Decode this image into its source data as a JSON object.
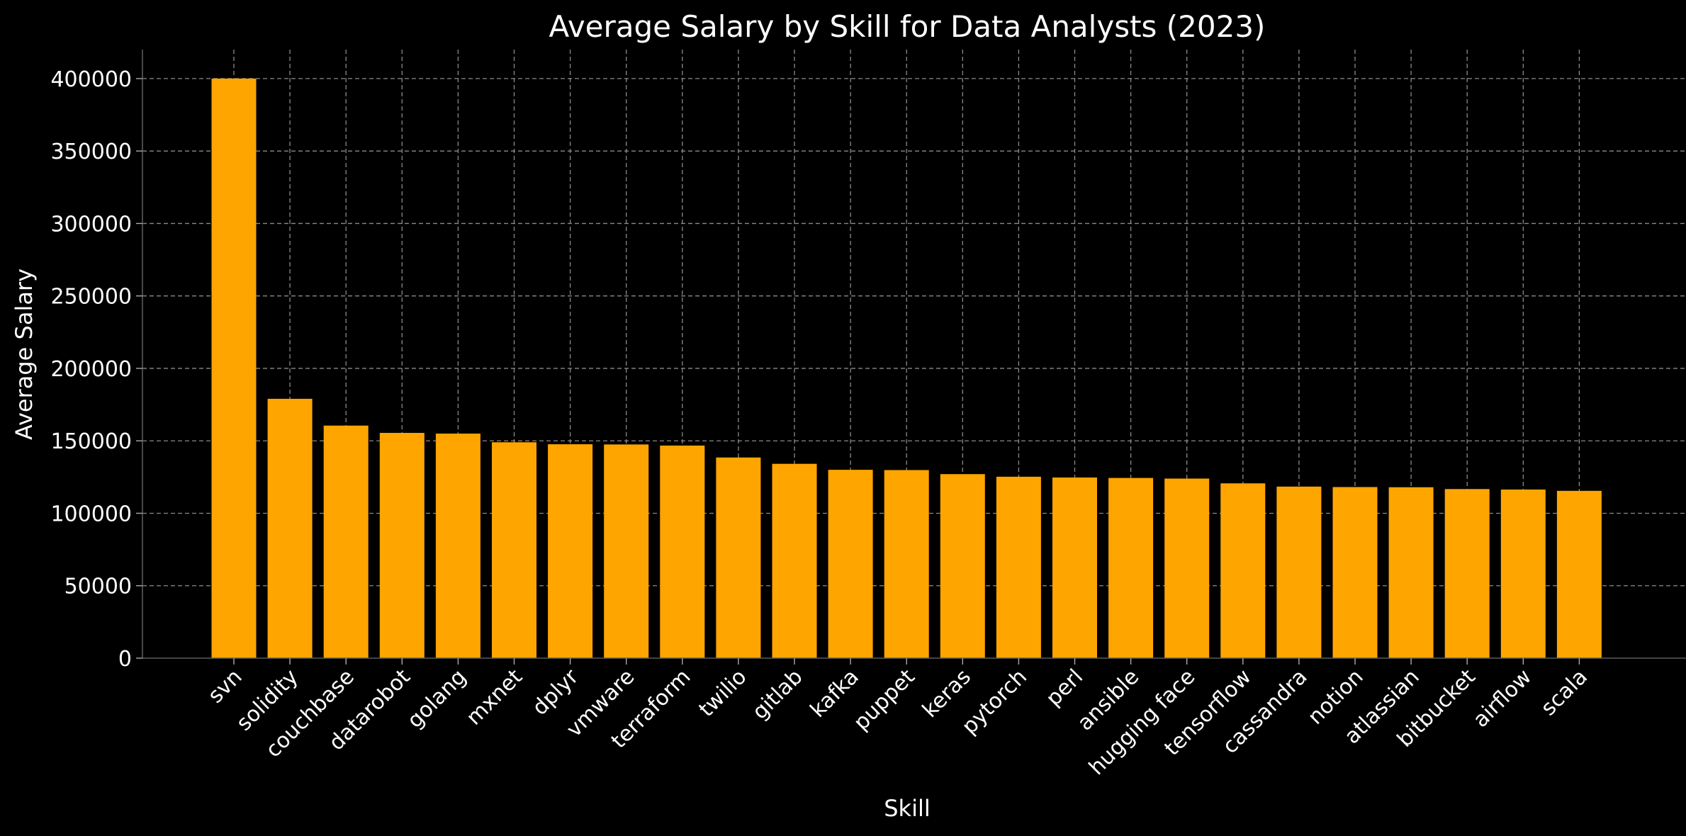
{
  "chart_data": {
    "type": "bar",
    "title": "Average Salary by Skill for Data Analysts (2023)",
    "xlabel": "Skill",
    "ylabel": "Average Salary",
    "categories": [
      "svn",
      "solidity",
      "couchbase",
      "datarobot",
      "golang",
      "mxnet",
      "dplyr",
      "vmware",
      "terraform",
      "twilio",
      "gitlab",
      "kafka",
      "puppet",
      "keras",
      "pytorch",
      "perl",
      "ansible",
      "hugging face",
      "tensorflow",
      "cassandra",
      "notion",
      "atlassian",
      "bitbucket",
      "airflow",
      "scala"
    ],
    "values": [
      400000,
      179000,
      160515,
      155486,
      155000,
      149000,
      147633,
      147500,
      146734,
      138500,
      134126,
      129999,
      129820,
      127013,
      125226,
      124686,
      124370,
      123950,
      120647,
      118407,
      118092,
      117966,
      116712,
      116387,
      115480
    ],
    "yticks": [
      0,
      50000,
      100000,
      150000,
      200000,
      250000,
      300000,
      350000,
      400000
    ],
    "ylim": [
      0,
      420000
    ],
    "grid": true,
    "bar_color": "#ffa500",
    "background": "#000000"
  }
}
